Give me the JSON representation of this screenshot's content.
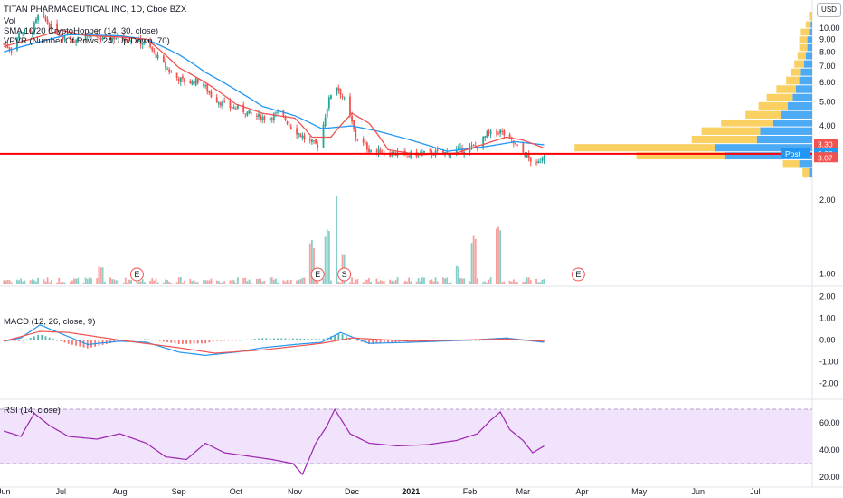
{
  "colors": {
    "up": "#26a69a",
    "down": "#ef5350",
    "sma_fast": "#ef5350",
    "sma_slow": "#2196f3",
    "hline": "#ff0000",
    "vpvr_up": "#2196f3",
    "vpvr_down": "#f7c43a",
    "rsi_fill": "#f1e3fb",
    "rsi_line": "#9c27b0"
  },
  "legend": {
    "main_title": "TITAN PHARMACEUTICAL INC, 1D, Cboe BZX",
    "vol": "Vol",
    "sma": "SMA 10/20 CryptoHopper (14, 30, close)",
    "vpvr": "VPVR (Number Of Rows, 24, Up/Down, 70)",
    "macd": "MACD (12, 26, close, 9)",
    "rsi": "RSI (14, close)"
  },
  "currency_button": "USD",
  "price_tags": [
    {
      "label": "3.30",
      "value": 3.3,
      "color": "#ef5350"
    },
    {
      "label": "3.08",
      "value": 3.08,
      "color": "#2196f3"
    },
    {
      "label": "3.07",
      "value": 3.07,
      "color": "#ef5350"
    }
  ],
  "post_label": "Post",
  "event_markers": [
    {
      "label": "E",
      "date": "2020-08-10"
    },
    {
      "label": "E",
      "date": "2020-11-13"
    },
    {
      "label": "S",
      "date": "2020-11-27"
    },
    {
      "label": "E",
      "date": "2021-03-30"
    }
  ],
  "chart_data": [
    {
      "type": "candlestick",
      "title": "TITAN PHARMACEUTICAL INC, 1D, Cboe BZX",
      "y_scale": "log",
      "ylim": [
        0.9,
        13
      ],
      "y_ticks": [
        1.0,
        2.0,
        3.0,
        4.0,
        5.0,
        6.0,
        7.0,
        8.0,
        9.0,
        10.0
      ],
      "x_ticks": [
        "Jun",
        "Jul",
        "Aug",
        "Sep",
        "Oct",
        "Nov",
        "Dec",
        "2021",
        "Feb",
        "Mar",
        "Apr",
        "May",
        "Jun",
        "Jul"
      ],
      "x_tick_dates": [
        "2020-06-01",
        "2020-07-01",
        "2020-08-01",
        "2020-09-01",
        "2020-10-01",
        "2020-11-01",
        "2020-12-01",
        "2021-01-01",
        "2021-02-01",
        "2021-03-01",
        "2021-04-01",
        "2021-05-01",
        "2021-06-01",
        "2021-07-01"
      ],
      "x_range": [
        "2020-05-30",
        "2021-07-31"
      ],
      "close_path": [
        [
          "2020-06-01",
          8.6
        ],
        [
          "2020-06-05",
          8.2
        ],
        [
          "2020-06-10",
          9.8
        ],
        [
          "2020-06-15",
          9.4
        ],
        [
          "2020-06-20",
          11.5
        ],
        [
          "2020-06-25",
          10.2
        ],
        [
          "2020-07-01",
          9.4
        ],
        [
          "2020-07-08",
          8.9
        ],
        [
          "2020-07-15",
          9.3
        ],
        [
          "2020-07-22",
          9.0
        ],
        [
          "2020-08-01",
          9.2
        ],
        [
          "2020-08-08",
          9.0
        ],
        [
          "2020-08-15",
          8.6
        ],
        [
          "2020-08-22",
          7.4
        ],
        [
          "2020-08-29",
          6.4
        ],
        [
          "2020-09-05",
          6.0
        ],
        [
          "2020-09-12",
          6.1
        ],
        [
          "2020-09-19",
          5.2
        ],
        [
          "2020-09-26",
          4.8
        ],
        [
          "2020-10-03",
          4.7
        ],
        [
          "2020-10-10",
          4.4
        ],
        [
          "2020-10-17",
          4.3
        ],
        [
          "2020-10-24",
          4.5
        ],
        [
          "2020-10-31",
          3.9
        ],
        [
          "2020-11-07",
          3.5
        ],
        [
          "2020-11-14",
          3.3
        ],
        [
          "2020-11-18",
          4.8
        ],
        [
          "2020-11-22",
          6.0
        ],
        [
          "2020-11-27",
          5.1
        ],
        [
          "2020-12-03",
          3.6
        ],
        [
          "2020-12-10",
          3.2
        ],
        [
          "2020-12-20",
          3.1
        ],
        [
          "2021-01-01",
          3.05
        ],
        [
          "2021-01-10",
          3.1
        ],
        [
          "2021-01-20",
          3.1
        ],
        [
          "2021-01-28",
          3.2
        ],
        [
          "2021-02-05",
          3.3
        ],
        [
          "2021-02-10",
          3.7
        ],
        [
          "2021-02-17",
          3.8
        ],
        [
          "2021-02-24",
          3.4
        ],
        [
          "2021-03-03",
          3.0
        ],
        [
          "2021-03-08",
          2.75
        ],
        [
          "2021-03-12",
          3.07
        ]
      ],
      "sma_fast_path": [
        [
          "2020-06-01",
          8.4
        ],
        [
          "2020-06-15",
          9.0
        ],
        [
          "2020-07-01",
          9.8
        ],
        [
          "2020-07-15",
          9.3
        ],
        [
          "2020-08-01",
          9.2
        ],
        [
          "2020-08-15",
          9.0
        ],
        [
          "2020-09-01",
          6.9
        ],
        [
          "2020-09-15",
          6.0
        ],
        [
          "2020-10-01",
          4.9
        ],
        [
          "2020-10-15",
          4.5
        ],
        [
          "2020-11-01",
          4.3
        ],
        [
          "2020-11-10",
          3.6
        ],
        [
          "2020-11-20",
          3.6
        ],
        [
          "2020-12-01",
          4.5
        ],
        [
          "2020-12-10",
          4.1
        ],
        [
          "2020-12-20",
          3.2
        ],
        [
          "2021-01-05",
          3.05
        ],
        [
          "2021-01-25",
          3.1
        ],
        [
          "2021-02-10",
          3.4
        ],
        [
          "2021-02-20",
          3.6
        ],
        [
          "2021-03-01",
          3.5
        ],
        [
          "2021-03-12",
          3.25
        ]
      ],
      "sma_slow_path": [
        [
          "2020-06-01",
          8.0
        ],
        [
          "2020-06-20",
          8.8
        ],
        [
          "2020-07-05",
          9.4
        ],
        [
          "2020-08-01",
          9.3
        ],
        [
          "2020-08-15",
          9.0
        ],
        [
          "2020-09-01",
          7.8
        ],
        [
          "2020-09-15",
          6.6
        ],
        [
          "2020-10-01",
          5.6
        ],
        [
          "2020-10-15",
          4.8
        ],
        [
          "2020-11-01",
          4.4
        ],
        [
          "2020-11-15",
          3.9
        ],
        [
          "2020-12-01",
          4.0
        ],
        [
          "2020-12-15",
          3.8
        ],
        [
          "2021-01-01",
          3.5
        ],
        [
          "2021-01-20",
          3.15
        ],
        [
          "2021-02-10",
          3.3
        ],
        [
          "2021-02-25",
          3.45
        ],
        [
          "2021-03-12",
          3.35
        ]
      ],
      "horizontal_line": 3.08
    },
    {
      "type": "bar",
      "title": "Vol",
      "note": "relative volume spikes",
      "spikes": [
        [
          "2020-07-22",
          0.2
        ],
        [
          "2020-11-10",
          0.45
        ],
        [
          "2020-11-18",
          0.65
        ],
        [
          "2020-11-22",
          0.9
        ],
        [
          "2020-11-27",
          0.35
        ],
        [
          "2021-01-25",
          0.2
        ],
        [
          "2021-02-03",
          0.55
        ],
        [
          "2021-02-16",
          0.6
        ]
      ]
    },
    {
      "type": "bar",
      "title": "VPVR (Number Of Rows, 24, Up/Down, 70)",
      "rows": [
        {
          "price": 11.0,
          "up": 0.0,
          "down": 0.02
        },
        {
          "price": 10.3,
          "up": 0.01,
          "down": 0.03
        },
        {
          "price": 9.6,
          "up": 0.02,
          "down": 0.05
        },
        {
          "price": 8.9,
          "up": 0.03,
          "down": 0.05
        },
        {
          "price": 8.3,
          "up": 0.03,
          "down": 0.05
        },
        {
          "price": 7.7,
          "up": 0.04,
          "down": 0.05
        },
        {
          "price": 7.1,
          "up": 0.05,
          "down": 0.06
        },
        {
          "price": 6.6,
          "up": 0.07,
          "down": 0.06
        },
        {
          "price": 6.1,
          "up": 0.08,
          "down": 0.08
        },
        {
          "price": 5.6,
          "up": 0.1,
          "down": 0.12
        },
        {
          "price": 5.2,
          "up": 0.12,
          "down": 0.16
        },
        {
          "price": 4.8,
          "up": 0.15,
          "down": 0.18
        },
        {
          "price": 4.4,
          "up": 0.19,
          "down": 0.22
        },
        {
          "price": 4.1,
          "up": 0.24,
          "down": 0.32
        },
        {
          "price": 3.8,
          "up": 0.32,
          "down": 0.36
        },
        {
          "price": 3.5,
          "up": 0.34,
          "down": 0.4
        },
        {
          "price": 3.25,
          "up": 0.6,
          "down": 0.86
        },
        {
          "price": 3.0,
          "up": 0.54,
          "down": 0.54
        },
        {
          "price": 2.8,
          "up": 0.08,
          "down": 0.1
        },
        {
          "price": 2.6,
          "up": 0.02,
          "down": 0.04
        }
      ]
    },
    {
      "type": "line",
      "title": "MACD (12, 26, close, 9)",
      "ylim": [
        -2.6,
        2.4
      ],
      "y_ticks": [
        2.0,
        1.0,
        0.0,
        -1.0,
        -2.0
      ],
      "macd_path": [
        [
          "2020-06-01",
          -0.05
        ],
        [
          "2020-06-10",
          0.1
        ],
        [
          "2020-06-20",
          0.7
        ],
        [
          "2020-07-01",
          0.3
        ],
        [
          "2020-07-15",
          -0.2
        ],
        [
          "2020-08-01",
          -0.05
        ],
        [
          "2020-08-15",
          -0.1
        ],
        [
          "2020-09-01",
          -0.55
        ],
        [
          "2020-09-15",
          -0.7
        ],
        [
          "2020-10-01",
          -0.55
        ],
        [
          "2020-10-15",
          -0.35
        ],
        [
          "2020-11-01",
          -0.2
        ],
        [
          "2020-11-15",
          -0.1
        ],
        [
          "2020-11-25",
          0.35
        ],
        [
          "2020-12-10",
          -0.15
        ],
        [
          "2021-01-01",
          -0.1
        ],
        [
          "2021-02-01",
          0.0
        ],
        [
          "2021-02-20",
          0.1
        ],
        [
          "2021-03-12",
          -0.1
        ]
      ],
      "signal_path": [
        [
          "2020-06-01",
          -0.05
        ],
        [
          "2020-06-20",
          0.4
        ],
        [
          "2020-07-05",
          0.35
        ],
        [
          "2020-08-01",
          0.0
        ],
        [
          "2020-09-01",
          -0.35
        ],
        [
          "2020-09-20",
          -0.6
        ],
        [
          "2020-10-15",
          -0.45
        ],
        [
          "2020-11-15",
          -0.15
        ],
        [
          "2020-12-01",
          0.1
        ],
        [
          "2021-01-01",
          -0.05
        ],
        [
          "2021-02-20",
          0.05
        ],
        [
          "2021-03-12",
          -0.05
        ]
      ]
    },
    {
      "type": "line",
      "title": "RSI (14, close)",
      "ylim": [
        14,
        76
      ],
      "y_ticks": [
        60.0,
        40.0,
        20.0
      ],
      "band": [
        30,
        70
      ],
      "rsi_path": [
        [
          "2020-06-01",
          54
        ],
        [
          "2020-06-10",
          50
        ],
        [
          "2020-06-17",
          67
        ],
        [
          "2020-06-25",
          58
        ],
        [
          "2020-07-05",
          50
        ],
        [
          "2020-07-20",
          48
        ],
        [
          "2020-08-01",
          52
        ],
        [
          "2020-08-15",
          45
        ],
        [
          "2020-08-25",
          35
        ],
        [
          "2020-09-05",
          33
        ],
        [
          "2020-09-15",
          45
        ],
        [
          "2020-09-25",
          38
        ],
        [
          "2020-10-05",
          36
        ],
        [
          "2020-10-20",
          33
        ],
        [
          "2020-10-31",
          30
        ],
        [
          "2020-11-05",
          22
        ],
        [
          "2020-11-12",
          45
        ],
        [
          "2020-11-18",
          58
        ],
        [
          "2020-11-22",
          70
        ],
        [
          "2020-11-30",
          52
        ],
        [
          "2020-12-10",
          45
        ],
        [
          "2020-12-25",
          43
        ],
        [
          "2021-01-10",
          44
        ],
        [
          "2021-01-25",
          47
        ],
        [
          "2021-02-05",
          52
        ],
        [
          "2021-02-12",
          62
        ],
        [
          "2021-02-17",
          68
        ],
        [
          "2021-02-22",
          55
        ],
        [
          "2021-03-01",
          47
        ],
        [
          "2021-03-06",
          38
        ],
        [
          "2021-03-12",
          43
        ]
      ]
    }
  ]
}
